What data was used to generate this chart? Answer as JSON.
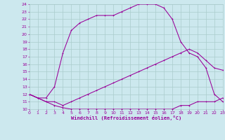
{
  "xlabel": "Windchill (Refroidissement éolien,°C)",
  "ylim": [
    10,
    24
  ],
  "xlim": [
    0,
    23
  ],
  "yticks": [
    10,
    11,
    12,
    13,
    14,
    15,
    16,
    17,
    18,
    19,
    20,
    21,
    22,
    23,
    24
  ],
  "xticks": [
    0,
    1,
    2,
    3,
    4,
    5,
    6,
    7,
    8,
    9,
    10,
    11,
    12,
    13,
    14,
    15,
    16,
    17,
    18,
    19,
    20,
    21,
    22,
    23
  ],
  "bg_color": "#cce8ee",
  "line_color": "#990099",
  "grid_color": "#aacccc",
  "curve1_x": [
    0,
    1,
    2,
    3,
    4,
    5,
    6,
    7,
    8,
    9,
    10,
    11,
    12,
    13,
    14,
    15,
    16,
    17,
    18,
    19,
    20,
    21,
    22,
    23
  ],
  "curve1_y": [
    12.0,
    11.5,
    11.0,
    10.5,
    10.2,
    10.0,
    10.0,
    10.0,
    10.0,
    10.0,
    10.0,
    10.0,
    10.0,
    10.0,
    10.0,
    10.0,
    10.0,
    10.0,
    10.5,
    10.5,
    11.0,
    11.0,
    11.0,
    11.5
  ],
  "curve2_x": [
    0,
    1,
    2,
    3,
    4,
    5,
    6,
    7,
    8,
    9,
    10,
    11,
    12,
    13,
    14,
    15,
    16,
    17,
    18,
    19,
    20,
    21,
    22,
    23
  ],
  "curve2_y": [
    12.0,
    11.5,
    11.0,
    11.0,
    10.5,
    11.0,
    11.5,
    12.0,
    12.5,
    13.0,
    13.5,
    14.0,
    14.5,
    15.0,
    15.5,
    16.0,
    16.5,
    17.0,
    17.5,
    18.0,
    17.5,
    16.5,
    15.5,
    15.2
  ],
  "curve3_x": [
    0,
    1,
    2,
    3,
    4,
    5,
    6,
    7,
    8,
    9,
    10,
    11,
    12,
    13,
    14,
    15,
    16,
    17,
    18,
    19,
    20,
    21,
    22,
    23
  ],
  "curve3_y": [
    12.0,
    11.5,
    11.5,
    13.0,
    17.5,
    20.5,
    21.5,
    22.0,
    22.5,
    22.5,
    22.5,
    23.0,
    23.5,
    24.0,
    24.0,
    24.0,
    23.5,
    22.0,
    19.0,
    17.5,
    17.0,
    15.5,
    12.0,
    11.0
  ]
}
